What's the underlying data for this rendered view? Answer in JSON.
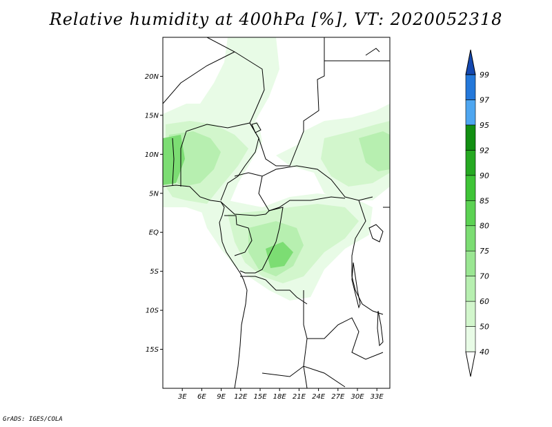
{
  "title": "Relative humidity at 400hPa [%], VT: 2020052318",
  "credit": "GrADS: IGES/COLA",
  "map": {
    "lat_labels": [
      "20N",
      "15N",
      "10N",
      "5N",
      "EQ",
      "5S",
      "10S",
      "15S"
    ],
    "lat_values": [
      20,
      15,
      10,
      5,
      0,
      -5,
      -10,
      -15
    ],
    "lon_labels": [
      "3E",
      "6E",
      "9E",
      "12E",
      "15E",
      "18E",
      "21E",
      "24E",
      "27E",
      "30E",
      "33E"
    ],
    "lon_values": [
      3,
      6,
      9,
      12,
      15,
      18,
      21,
      24,
      27,
      30,
      33
    ],
    "lon_range": [
      0,
      35
    ],
    "lat_range": [
      -20,
      25
    ]
  },
  "colorbar": {
    "labels": [
      "40",
      "50",
      "60",
      "70",
      "75",
      "80",
      "85",
      "90",
      "92",
      "95",
      "97",
      "99"
    ],
    "colors": [
      "#e8fbe6",
      "#d2f6cc",
      "#b7efb0",
      "#9ae692",
      "#7cdd73",
      "#5cd253",
      "#3fc437",
      "#26a922",
      "#128f12",
      "#4ea6f0",
      "#2478da",
      "#1448b0"
    ],
    "under_color": "#ffffff"
  }
}
